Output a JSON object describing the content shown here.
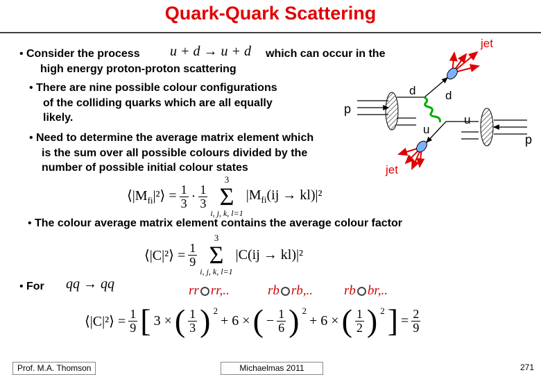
{
  "header": {
    "title": "Quark-Quark Scattering"
  },
  "bullets": [
    {
      "text": "Consider the process",
      "formula": "u + d → u + d",
      "text_after": "which can occur in the",
      "continuation": "high energy proton-proton scattering"
    },
    {
      "lines": [
        "There are nine possible colour configurations",
        "of the colliding quarks which are all equally",
        "likely."
      ]
    },
    {
      "lines": [
        "Need to determine the average  matrix element which",
        "is the sum over all possible colours divided by the",
        "number of possible initial colour states"
      ]
    },
    {
      "lines": [
        "The colour average matrix element contains the average colour factor"
      ]
    },
    {
      "text": "For",
      "formula": "qq → qq"
    }
  ],
  "formula_1": {
    "lhs": "⟨|M",
    "lhs_sub": "fi",
    "lhs_end": "|²⟩ =",
    "frac_a": [
      "1",
      "3"
    ],
    "dot": "·",
    "frac_b": [
      "1",
      "3"
    ],
    "sum_top": "3",
    "sum": "Σ",
    "sum_bottom": "i, j, k, l=1",
    "rhs": "|M",
    "rhs_sub": "fi",
    "rhs_end": "(ij → kl)|²"
  },
  "formula_2": {
    "lhs": "⟨|C|²⟩ =",
    "frac": [
      "1",
      "9"
    ],
    "sum_top": "3",
    "sum": "Σ",
    "sum_bottom": "i, j, k, l=1",
    "rhs": "|C(ij → kl)|²"
  },
  "colour_examples": [
    [
      "rr",
      "rr,.."
    ],
    [
      "rb",
      "rb,.."
    ],
    [
      "rb",
      "br,.."
    ]
  ],
  "formula_3": {
    "lhs": "⟨|C|²⟩ =",
    "frac": [
      "1",
      "9"
    ],
    "open": "[",
    "terms": [
      {
        "coef": "3 ×",
        "lp": "(",
        "frac": [
          "1",
          "3"
        ],
        "rp": ")",
        "pow": "2"
      },
      {
        "coef": "+ 6 ×",
        "lp": "(",
        "sign": "−",
        "frac": [
          "1",
          "6"
        ],
        "rp": ")",
        "pow": "2"
      },
      {
        "coef": "+ 6 ×",
        "lp": "(",
        "frac": [
          "1",
          "2"
        ],
        "rp": ")",
        "pow": "2"
      }
    ],
    "close": "]",
    "eq": "=",
    "result": [
      "2",
      "9"
    ]
  },
  "diagram": {
    "labels": {
      "jet_top": "jet",
      "d_in": "d",
      "d_out": "d",
      "p_left": "p",
      "u_in": "u",
      "u_out": "u",
      "p_right": "p",
      "jet_bottom": "jet"
    }
  },
  "footer": {
    "author": "Prof. M.A. Thomson",
    "term": "Michaelmas 2011",
    "page": "271"
  }
}
